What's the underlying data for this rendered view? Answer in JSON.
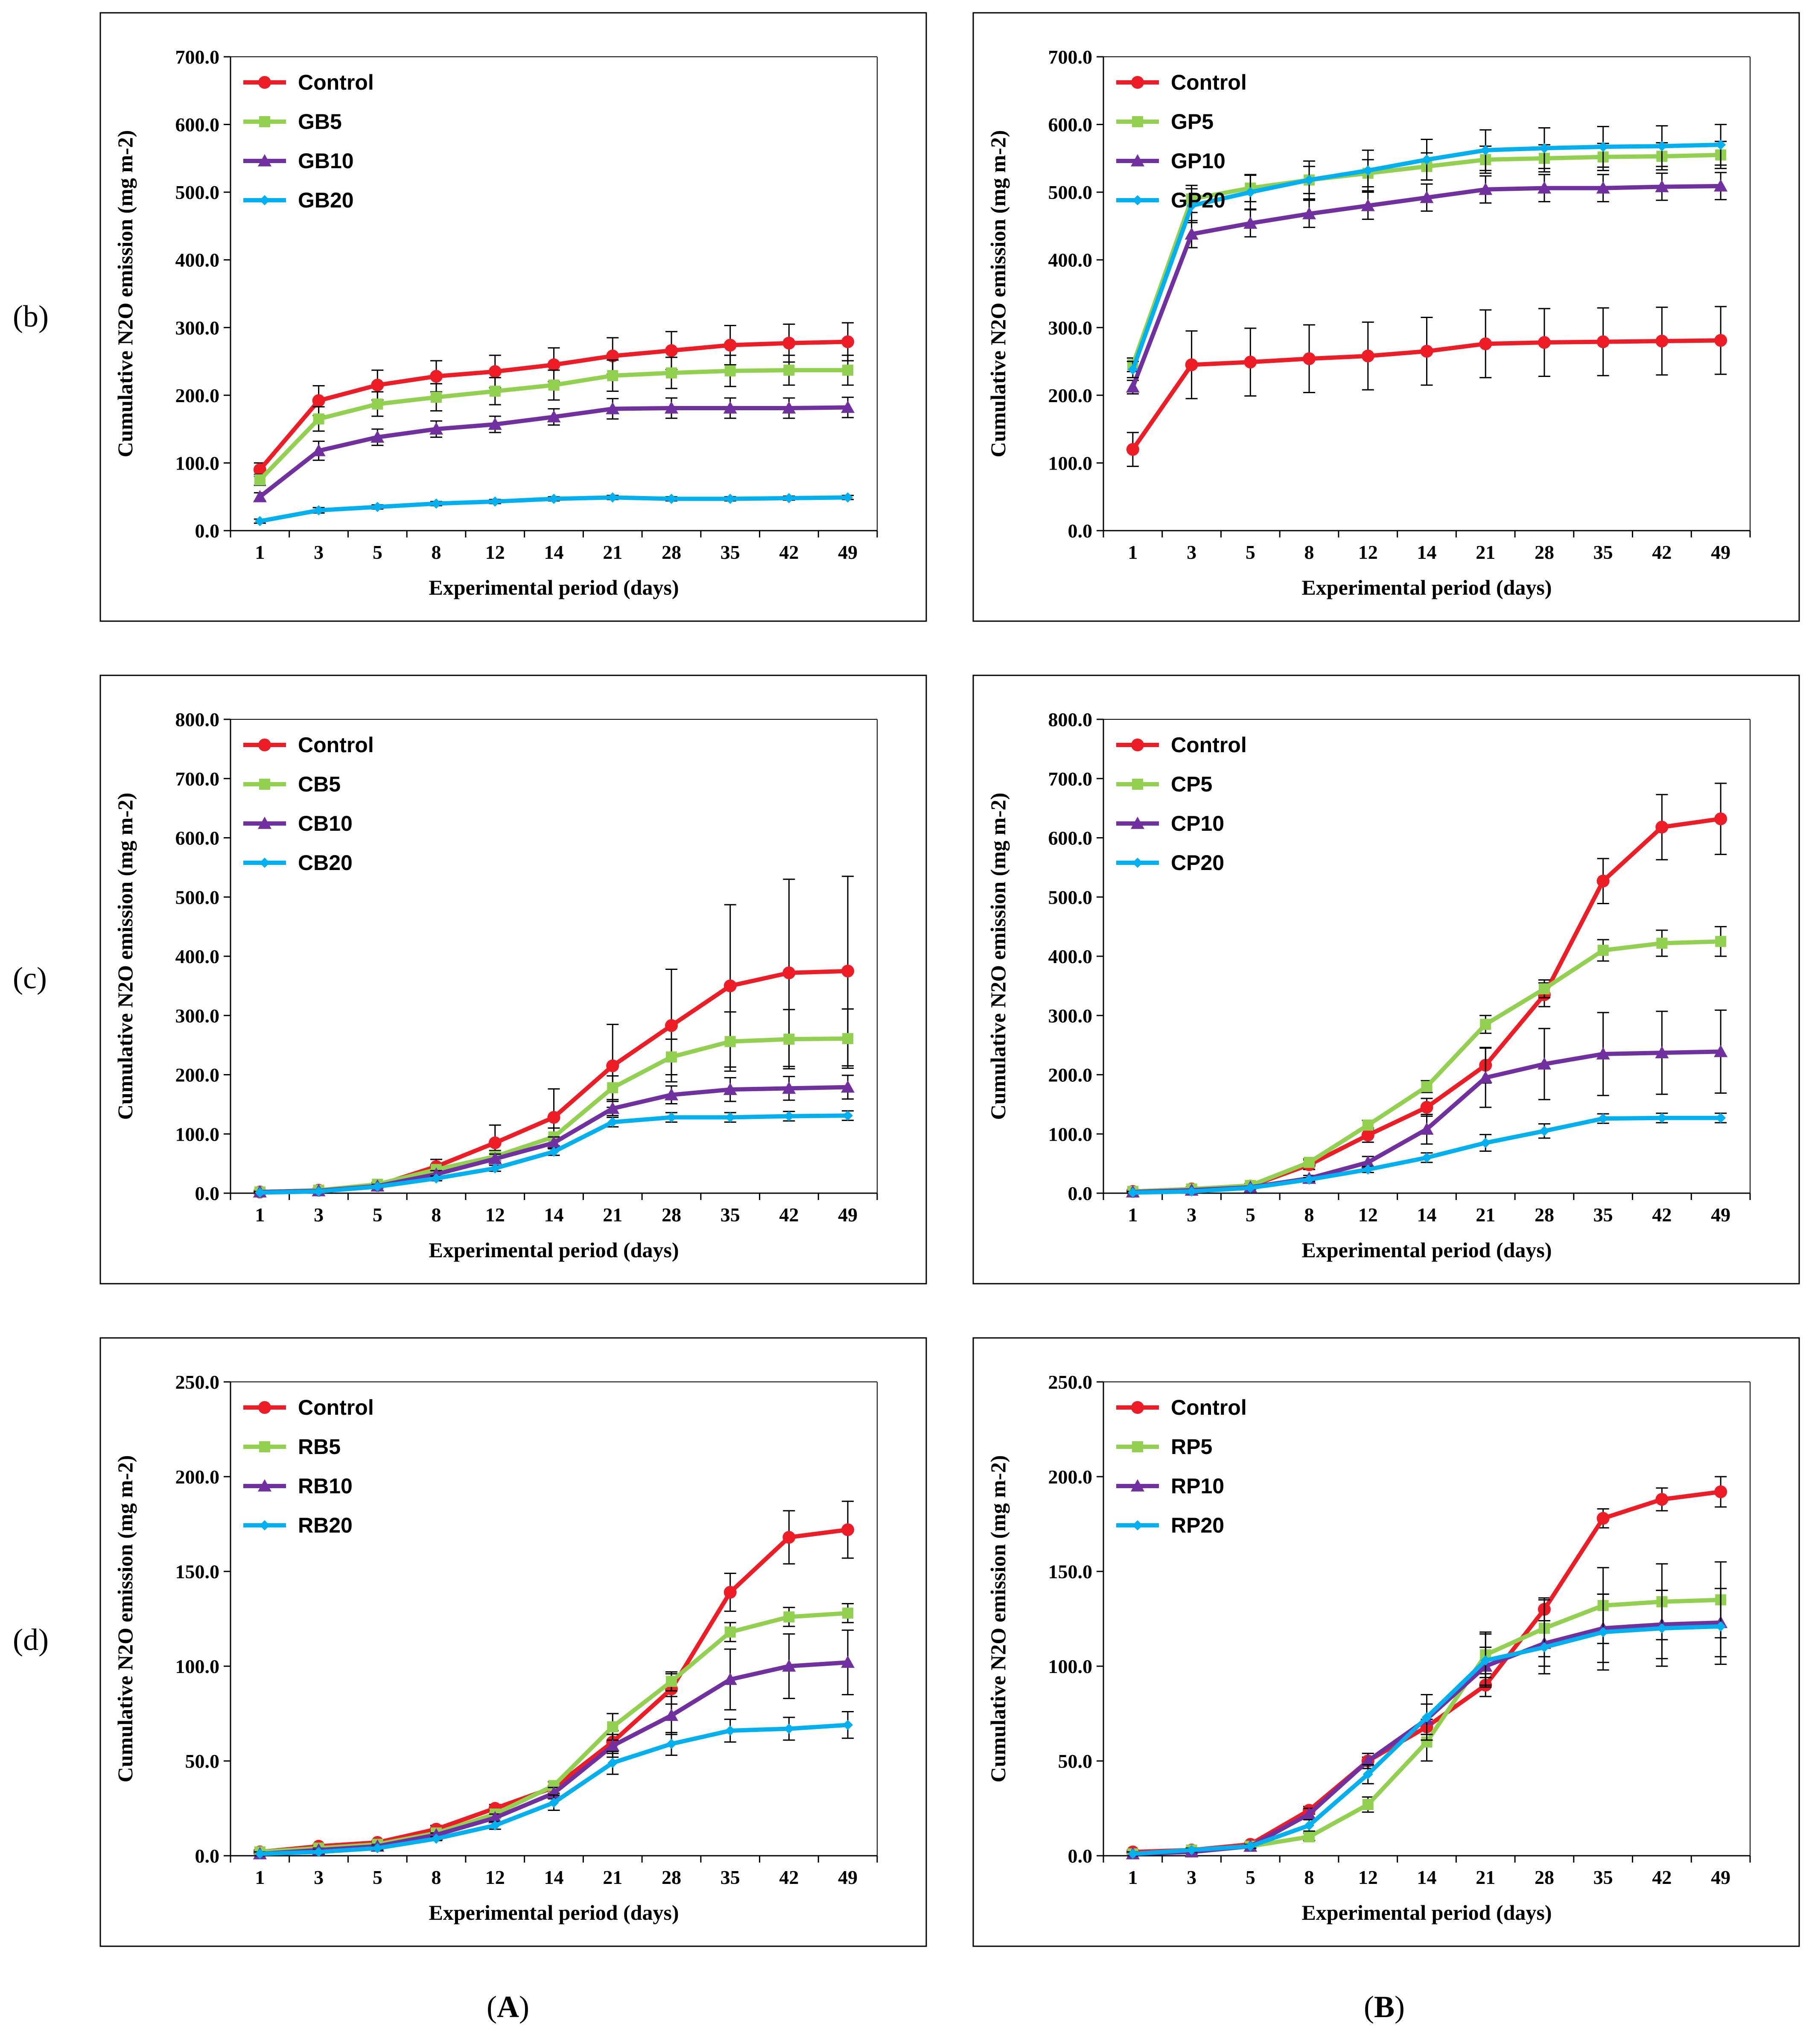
{
  "row_labels": [
    "(b)",
    "(c)",
    "(d)"
  ],
  "column_labels": [
    {
      "open": "(",
      "letter": "A",
      "close": ")"
    },
    {
      "open": "(",
      "letter": "B",
      "close": ")"
    }
  ],
  "colors": {
    "Control": "#ee1c25",
    "x5": "#92d050",
    "x10": "#7030a0",
    "x20": "#00b0f0"
  },
  "chart_data": [
    {
      "type": "line",
      "panel": "b-A",
      "ylabel": "Cumulative N2O emission (mg m-2)",
      "xlabel": "Experimental period (days)",
      "categories": [
        "1",
        "3",
        "5",
        "8",
        "12",
        "14",
        "21",
        "28",
        "35",
        "42",
        "49"
      ],
      "ylim": [
        0,
        700
      ],
      "ystep": 100,
      "legend": "top-left",
      "series": [
        {
          "name": "Control",
          "values": [
            90,
            192,
            215,
            228,
            235,
            245,
            258,
            266,
            274,
            277,
            279
          ],
          "err": [
            10,
            22,
            22,
            23,
            24,
            25,
            27,
            28,
            29,
            28,
            28
          ]
        },
        {
          "name": "GB5",
          "values": [
            75,
            165,
            187,
            197,
            206,
            215,
            229,
            233,
            236,
            237,
            237
          ],
          "err": [
            8,
            18,
            18,
            20,
            20,
            22,
            23,
            23,
            23,
            22,
            22
          ]
        },
        {
          "name": "GB10",
          "values": [
            50,
            118,
            138,
            150,
            157,
            168,
            180,
            181,
            181,
            181,
            182
          ],
          "err": [
            6,
            14,
            12,
            12,
            12,
            12,
            15,
            15,
            15,
            15,
            15
          ]
        },
        {
          "name": "GB20",
          "values": [
            14,
            30,
            35,
            40,
            43,
            47,
            49,
            47,
            47,
            48,
            49
          ],
          "err": [
            3,
            4,
            3,
            3,
            3,
            3,
            3,
            3,
            3,
            3,
            3
          ]
        }
      ]
    },
    {
      "type": "line",
      "panel": "b-B",
      "ylabel": "Cumulative N2O emission (mg m-2)",
      "xlabel": "Experimental period (days)",
      "categories": [
        "1",
        "3",
        "5",
        "8",
        "12",
        "14",
        "21",
        "28",
        "35",
        "42",
        "49"
      ],
      "ylim": [
        0,
        700
      ],
      "ystep": 100,
      "legend": "top-left",
      "series": [
        {
          "name": "Control",
          "values": [
            120,
            245,
            249,
            254,
            258,
            265,
            276,
            278,
            279,
            280,
            281
          ],
          "err": [
            25,
            50,
            50,
            50,
            50,
            50,
            50,
            50,
            50,
            50,
            50
          ]
        },
        {
          "name": "GP5",
          "values": [
            245,
            490,
            506,
            518,
            528,
            538,
            548,
            550,
            552,
            553,
            555
          ],
          "err": [
            10,
            20,
            20,
            20,
            20,
            20,
            20,
            20,
            20,
            20,
            20
          ]
        },
        {
          "name": "GP10",
          "values": [
            212,
            438,
            454,
            468,
            480,
            492,
            504,
            506,
            506,
            508,
            509
          ],
          "err": [
            10,
            20,
            20,
            20,
            20,
            20,
            20,
            20,
            20,
            20,
            20
          ]
        },
        {
          "name": "GP20",
          "values": [
            238,
            480,
            500,
            518,
            532,
            548,
            562,
            565,
            567,
            568,
            570
          ],
          "err": [
            12,
            25,
            25,
            28,
            30,
            30,
            30,
            30,
            30,
            30,
            30
          ]
        }
      ]
    },
    {
      "type": "line",
      "panel": "c-A",
      "ylabel": "Cumulative N2O emission (mg m-2)",
      "xlabel": "Experimental period (days)",
      "categories": [
        "1",
        "3",
        "5",
        "8",
        "12",
        "14",
        "21",
        "28",
        "35",
        "42",
        "49"
      ],
      "ylim": [
        0,
        800
      ],
      "ystep": 100,
      "legend": "top-left",
      "series": [
        {
          "name": "Control",
          "values": [
            2,
            5,
            13,
            45,
            85,
            128,
            215,
            283,
            350,
            372,
            375
          ],
          "err": [
            1,
            2,
            4,
            12,
            30,
            48,
            70,
            95,
            137,
            158,
            160
          ]
        },
        {
          "name": "CB5",
          "values": [
            2,
            5,
            15,
            40,
            62,
            95,
            178,
            230,
            256,
            260,
            261
          ],
          "err": [
            1,
            2,
            3,
            8,
            10,
            15,
            20,
            30,
            50,
            50,
            50
          ]
        },
        {
          "name": "CB10",
          "values": [
            2,
            4,
            12,
            32,
            58,
            85,
            143,
            166,
            175,
            177,
            179
          ],
          "err": [
            1,
            2,
            3,
            6,
            8,
            10,
            12,
            15,
            20,
            20,
            20
          ]
        },
        {
          "name": "CB20",
          "values": [
            1,
            3,
            11,
            25,
            42,
            70,
            120,
            128,
            128,
            130,
            131
          ],
          "err": [
            1,
            1,
            2,
            4,
            5,
            6,
            8,
            8,
            8,
            8,
            8
          ]
        }
      ]
    },
    {
      "type": "line",
      "panel": "c-B",
      "ylabel": "Cumulative N2O emission (mg m-2)",
      "xlabel": "Experimental period (days)",
      "categories": [
        "1",
        "3",
        "5",
        "8",
        "12",
        "14",
        "21",
        "28",
        "35",
        "42",
        "49"
      ],
      "ylim": [
        0,
        800
      ],
      "ystep": 100,
      "legend": "top-left",
      "series": [
        {
          "name": "Control",
          "values": [
            3,
            7,
            12,
            48,
            98,
            145,
            216,
            335,
            527,
            618,
            632
          ],
          "err": [
            1,
            2,
            3,
            8,
            12,
            15,
            30,
            20,
            38,
            55,
            60
          ]
        },
        {
          "name": "CP5",
          "values": [
            3,
            7,
            13,
            52,
            115,
            180,
            285,
            345,
            410,
            422,
            425
          ],
          "err": [
            1,
            2,
            3,
            6,
            8,
            10,
            15,
            15,
            18,
            22,
            25
          ]
        },
        {
          "name": "CP10",
          "values": [
            2,
            5,
            10,
            25,
            52,
            108,
            195,
            218,
            235,
            237,
            239
          ],
          "err": [
            1,
            1,
            2,
            5,
            10,
            25,
            50,
            60,
            70,
            70,
            70
          ]
        },
        {
          "name": "CP20",
          "values": [
            1,
            3,
            9,
            23,
            40,
            60,
            85,
            105,
            126,
            127,
            127
          ],
          "err": [
            1,
            1,
            2,
            3,
            5,
            8,
            14,
            12,
            8,
            8,
            8
          ]
        }
      ]
    },
    {
      "type": "line",
      "panel": "d-A",
      "ylabel": "Cumulative N2O emission (mg m-2)",
      "xlabel": "Experimental period (days)",
      "categories": [
        "1",
        "3",
        "5",
        "8",
        "12",
        "14",
        "21",
        "28",
        "35",
        "42",
        "49"
      ],
      "ylim": [
        0,
        250
      ],
      "ystep": 50,
      "legend": "top-left",
      "series": [
        {
          "name": "Control",
          "values": [
            2,
            5,
            7,
            14,
            25,
            36,
            60,
            88,
            139,
            168,
            172
          ],
          "err": [
            1,
            1,
            1,
            2,
            2,
            3,
            6,
            8,
            10,
            14,
            15
          ]
        },
        {
          "name": "RB5",
          "values": [
            2,
            4,
            6,
            12,
            22,
            37,
            68,
            92,
            118,
            126,
            128
          ],
          "err": [
            1,
            1,
            1,
            1,
            2,
            2,
            7,
            5,
            5,
            5,
            5
          ]
        },
        {
          "name": "RB10",
          "values": [
            1,
            3,
            5,
            11,
            20,
            33,
            58,
            74,
            93,
            100,
            102
          ],
          "err": [
            1,
            1,
            1,
            1,
            2,
            3,
            6,
            10,
            16,
            17,
            17
          ]
        },
        {
          "name": "RB20",
          "values": [
            1,
            2,
            4,
            9,
            16,
            28,
            49,
            59,
            66,
            67,
            69
          ],
          "err": [
            1,
            1,
            1,
            1,
            2,
            4,
            6,
            6,
            6,
            6,
            7
          ]
        }
      ]
    },
    {
      "type": "line",
      "panel": "d-B",
      "ylabel": "Cumulative N2O emission (mg m-2)",
      "xlabel": "Experimental period (days)",
      "categories": [
        "1",
        "3",
        "5",
        "8",
        "12",
        "14",
        "21",
        "28",
        "35",
        "42",
        "49"
      ],
      "ylim": [
        0,
        250
      ],
      "ystep": 50,
      "legend": "top-left",
      "series": [
        {
          "name": "Control",
          "values": [
            2,
            3,
            6,
            24,
            50,
            68,
            90,
            130,
            178,
            188,
            192
          ],
          "err": [
            1,
            1,
            1,
            2,
            2,
            4,
            6,
            6,
            5,
            6,
            8
          ]
        },
        {
          "name": "RP5",
          "values": [
            1,
            3,
            5,
            10,
            27,
            60,
            106,
            120,
            132,
            134,
            135
          ],
          "err": [
            1,
            1,
            1,
            2,
            4,
            10,
            12,
            15,
            20,
            20,
            20
          ]
        },
        {
          "name": "RP10",
          "values": [
            1,
            2,
            5,
            22,
            50,
            72,
            100,
            112,
            120,
            122,
            123
          ],
          "err": [
            1,
            1,
            1,
            3,
            4,
            8,
            10,
            12,
            18,
            18,
            18
          ]
        },
        {
          "name": "RP20",
          "values": [
            1,
            3,
            5,
            16,
            43,
            73,
            103,
            110,
            118,
            120,
            121
          ],
          "err": [
            1,
            1,
            1,
            3,
            5,
            12,
            14,
            14,
            20,
            20,
            20
          ]
        }
      ]
    }
  ]
}
